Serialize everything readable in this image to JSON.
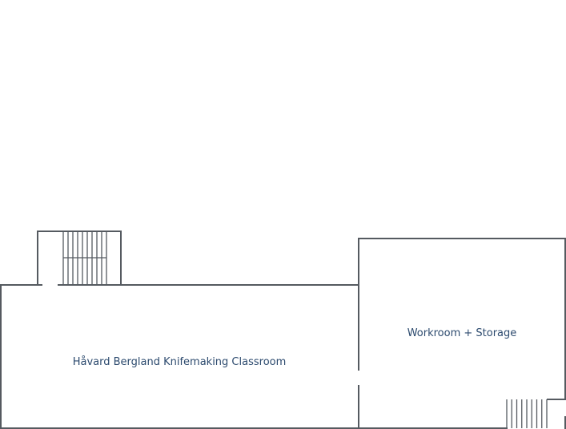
{
  "rooms": {
    "classroom": {
      "label": "Håvard Bergland Knifemaking Classroom"
    },
    "workroom": {
      "label": "Workroom + Storage"
    }
  },
  "colors": {
    "wall": "#555a60",
    "label": "#2c4a6e",
    "background": "#ffffff"
  }
}
